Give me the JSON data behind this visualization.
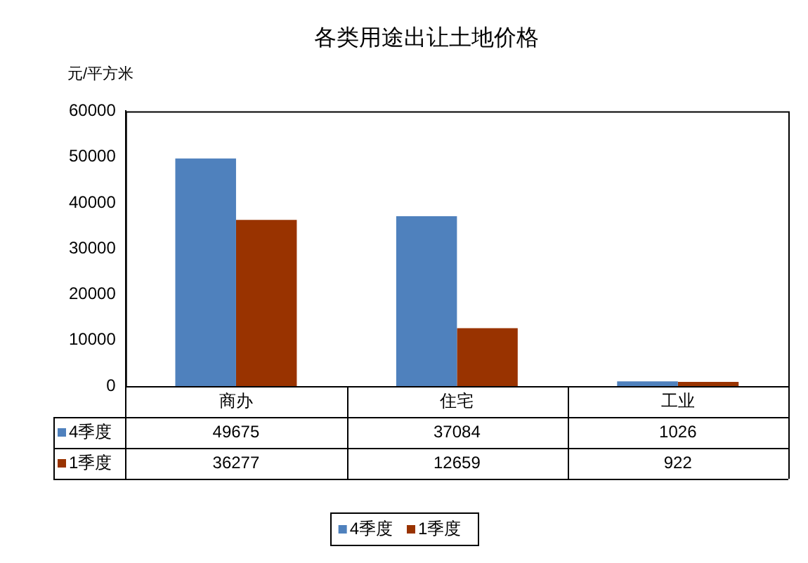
{
  "chart_data": {
    "type": "bar",
    "title": "各类用途出让土地价格",
    "ylabel": "元/平方米",
    "categories": [
      "商办",
      "住宅",
      "工业"
    ],
    "series": [
      {
        "name": "4季度",
        "color": "#4f81bd",
        "values": [
          49675,
          37084,
          1026
        ]
      },
      {
        "name": "1季度",
        "color": "#993300",
        "values": [
          36277,
          12659,
          922
        ]
      }
    ],
    "ylim": [
      0,
      60000
    ],
    "yticks": [
      0,
      10000,
      20000,
      30000,
      40000,
      50000,
      60000
    ],
    "grid": false,
    "legend": "bottom",
    "data_labels": true
  }
}
